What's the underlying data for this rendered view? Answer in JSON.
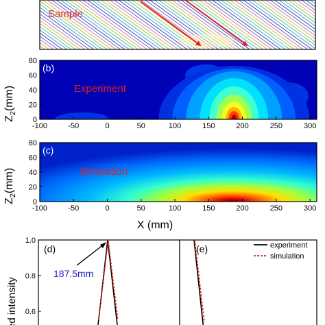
{
  "panel_a": {
    "label": "Sample",
    "colors": {
      "label": "#e02020",
      "arrow": "#e02020"
    }
  },
  "panel_b": {
    "letter": "(b)",
    "label": "Experiment",
    "ylabel": "Z",
    "ylabel_sub": "2",
    "ylabel_unit": "(mm)",
    "yticks": [
      "0",
      "20",
      "40",
      "60",
      "80"
    ],
    "xticks": [
      "-100",
      "-50",
      "0",
      "50",
      "100",
      "150",
      "200",
      "250",
      "300"
    ]
  },
  "panel_c": {
    "letter": "(c)",
    "label": "Simulation",
    "ylabel": "Z",
    "ylabel_sub": "2",
    "ylabel_unit": "(mm)",
    "yticks": [
      "0",
      "20",
      "40",
      "60",
      "80"
    ],
    "xticks": [
      "-100",
      "-50",
      "0",
      "50",
      "100",
      "150",
      "200",
      "250",
      "300"
    ],
    "xlabel": "X (mm)"
  },
  "panel_d": {
    "letter": "(d)",
    "annotation": "187.5mm",
    "ylabel": "ed intensity",
    "yticks": [
      "0.6",
      "0.8",
      "1.0"
    ]
  },
  "panel_e": {
    "letter": "(e)",
    "legend": [
      "experiment",
      "simulation"
    ]
  },
  "chart_data": [
    {
      "type": "heatmap",
      "panel": "b",
      "xlim": [
        -100,
        310
      ],
      "ylim": [
        0,
        80
      ],
      "peak": {
        "x": 187.5,
        "z": 0
      }
    },
    {
      "type": "heatmap",
      "panel": "c",
      "xlim": [
        -100,
        310
      ],
      "ylim": [
        0,
        80
      ],
      "peak": {
        "x": 187.5,
        "z": 0
      }
    },
    {
      "type": "line",
      "panel": "d",
      "ylim": [
        0.5,
        1.0
      ],
      "series": [
        {
          "name": "experiment",
          "color": "#000000",
          "dash": "solid"
        },
        {
          "name": "simulation",
          "color": "#e02020",
          "dash": "dashed"
        }
      ]
    },
    {
      "type": "line",
      "panel": "e",
      "ylim": [
        0.5,
        1.0
      ],
      "series": [
        {
          "name": "experiment",
          "color": "#000000",
          "dash": "solid"
        },
        {
          "name": "simulation",
          "color": "#e02020",
          "dash": "dashed"
        }
      ]
    }
  ]
}
